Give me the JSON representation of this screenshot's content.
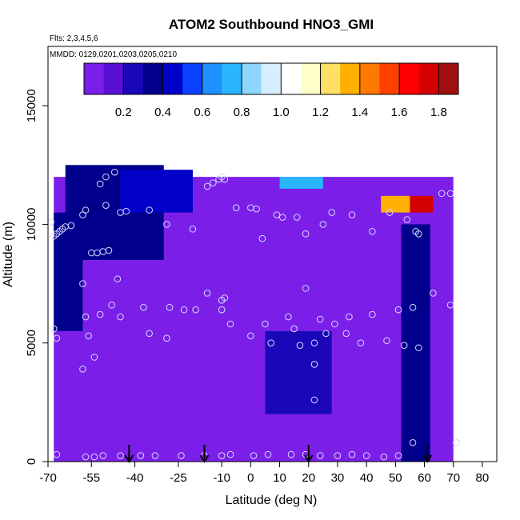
{
  "chart_data": {
    "type": "heatmap",
    "title": "ATOM2 Southbound HNO3_GMI",
    "notes": [
      "Flts: 2,3,4,5,6",
      "MMDD: 0129,0201,0203,0205,0210"
    ],
    "xlabel": "Latitude (deg N)",
    "ylabel": "Altitude (m)",
    "xlim": [
      -70,
      85
    ],
    "ylim": [
      0,
      17500
    ],
    "x_ticks": [
      -70,
      -55,
      -40,
      -25,
      -10,
      0,
      10,
      20,
      30,
      40,
      50,
      60,
      70,
      80
    ],
    "y_ticks": [
      0,
      5000,
      10000,
      15000
    ],
    "grid": false,
    "colorbar": {
      "placement": "top",
      "range": [
        0,
        1.9
      ],
      "ticks": [
        0.2,
        0.4,
        0.6,
        0.8,
        1.0,
        1.2,
        1.4,
        1.6,
        1.8
      ],
      "tick_labels": [
        "0.2",
        "0.4",
        "0.6",
        "0.8",
        "1.0",
        "1.2",
        "1.4",
        "1.6",
        "1.8"
      ],
      "colors": [
        "#7b1fe8",
        "#5a0fd6",
        "#1a08b8",
        "#00008c",
        "#0000c8",
        "#0a40ff",
        "#1e90ff",
        "#29b6ff",
        "#8fd6ff",
        "#d6efff",
        "#ffffff",
        "#ffffc8",
        "#ffe066",
        "#ffb000",
        "#ff7a00",
        "#ff4000",
        "#ff0000",
        "#d40000",
        "#a01010"
      ]
    },
    "field_regions": [
      {
        "lat_range": [
          -68,
          70
        ],
        "alt_range": [
          0,
          12000
        ],
        "value": 0.05,
        "note": "background"
      },
      {
        "lat_range": [
          -64,
          -30
        ],
        "alt_range": [
          8500,
          12500
        ],
        "value": 0.3
      },
      {
        "lat_range": [
          -45,
          -20
        ],
        "alt_range": [
          10500,
          12300
        ],
        "value": 0.45
      },
      {
        "lat_range": [
          5,
          28
        ],
        "alt_range": [
          2000,
          5500
        ],
        "value": 0.25
      },
      {
        "lat_range": [
          -68,
          -58
        ],
        "alt_range": [
          5500,
          10500
        ],
        "value": 0.3
      },
      {
        "lat_range": [
          52,
          62
        ],
        "alt_range": [
          0,
          10000
        ],
        "value": 0.35
      },
      {
        "lat_range": [
          10,
          25
        ],
        "alt_range": [
          11500,
          12000
        ],
        "value": 0.7
      },
      {
        "lat_range": [
          45,
          55
        ],
        "alt_range": [
          10500,
          11200
        ],
        "value": 1.3
      },
      {
        "lat_range": [
          55,
          63
        ],
        "alt_range": [
          10500,
          11200
        ],
        "value": 1.7
      }
    ],
    "flight_path_points": [
      {
        "lat": -69,
        "alt": 10100
      },
      {
        "lat": -68,
        "alt": 9500
      },
      {
        "lat": -67,
        "alt": 9600
      },
      {
        "lat": -66,
        "alt": 9700
      },
      {
        "lat": -65,
        "alt": 9800
      },
      {
        "lat": -64,
        "alt": 9900
      },
      {
        "lat": -62,
        "alt": 9950
      },
      {
        "lat": -58,
        "alt": 10400
      },
      {
        "lat": -57,
        "alt": 10600
      },
      {
        "lat": -55,
        "alt": 8800
      },
      {
        "lat": -53,
        "alt": 8800
      },
      {
        "lat": -51,
        "alt": 8850
      },
      {
        "lat": -49,
        "alt": 8900
      },
      {
        "lat": -52,
        "alt": 11700
      },
      {
        "lat": -50,
        "alt": 12000
      },
      {
        "lat": -47,
        "alt": 12200
      },
      {
        "lat": -45,
        "alt": 10500
      },
      {
        "lat": -43,
        "alt": 10550
      },
      {
        "lat": -50,
        "alt": 10800
      },
      {
        "lat": -35,
        "alt": 10600
      },
      {
        "lat": -29,
        "alt": 10000
      },
      {
        "lat": -20,
        "alt": 9800
      },
      {
        "lat": -15,
        "alt": 11600
      },
      {
        "lat": -13,
        "alt": 11750
      },
      {
        "lat": -11,
        "alt": 11900
      },
      {
        "lat": -10,
        "alt": 12000
      },
      {
        "lat": -9,
        "alt": 11900
      },
      {
        "lat": -5,
        "alt": 10700
      },
      {
        "lat": 0,
        "alt": 10700
      },
      {
        "lat": 2,
        "alt": 10650
      },
      {
        "lat": 4,
        "alt": 9400
      },
      {
        "lat": 9,
        "alt": 10400
      },
      {
        "lat": 11,
        "alt": 10300
      },
      {
        "lat": 16,
        "alt": 10300
      },
      {
        "lat": 19,
        "alt": 9600
      },
      {
        "lat": 25,
        "alt": 10000
      },
      {
        "lat": 28,
        "alt": 10500
      },
      {
        "lat": 35,
        "alt": 10400
      },
      {
        "lat": 42,
        "alt": 9700
      },
      {
        "lat": 48,
        "alt": 10500
      },
      {
        "lat": 54,
        "alt": 10200
      },
      {
        "lat": 57,
        "alt": 9700
      },
      {
        "lat": 58,
        "alt": 9600
      },
      {
        "lat": 66,
        "alt": 11300
      },
      {
        "lat": 69,
        "alt": 11300
      },
      {
        "lat": -58,
        "alt": 7500
      },
      {
        "lat": -46,
        "alt": 7700
      },
      {
        "lat": -52,
        "alt": 6200
      },
      {
        "lat": -57,
        "alt": 6100
      },
      {
        "lat": -48,
        "alt": 6600
      },
      {
        "lat": -45,
        "alt": 6100
      },
      {
        "lat": -37,
        "alt": 6500
      },
      {
        "lat": -28,
        "alt": 6500
      },
      {
        "lat": -23,
        "alt": 6400
      },
      {
        "lat": -19,
        "alt": 6400
      },
      {
        "lat": -15,
        "alt": 7100
      },
      {
        "lat": -10,
        "alt": 6800
      },
      {
        "lat": -9,
        "alt": 6900
      },
      {
        "lat": -10,
        "alt": 6400
      },
      {
        "lat": -7,
        "alt": 5800
      },
      {
        "lat": 0,
        "alt": 5300
      },
      {
        "lat": 5,
        "alt": 5800
      },
      {
        "lat": 7,
        "alt": 5000
      },
      {
        "lat": 13,
        "alt": 6100
      },
      {
        "lat": 15,
        "alt": 5600
      },
      {
        "lat": 19,
        "alt": 7300
      },
      {
        "lat": 22,
        "alt": 5000
      },
      {
        "lat": 24,
        "alt": 6000
      },
      {
        "lat": 26,
        "alt": 5400
      },
      {
        "lat": 29,
        "alt": 5800
      },
      {
        "lat": 33,
        "alt": 5400
      },
      {
        "lat": 34,
        "alt": 6100
      },
      {
        "lat": 38,
        "alt": 5000
      },
      {
        "lat": 42,
        "alt": 6200
      },
      {
        "lat": 47,
        "alt": 5100
      },
      {
        "lat": 51,
        "alt": 6400
      },
      {
        "lat": 53,
        "alt": 4900
      },
      {
        "lat": 56,
        "alt": 6500
      },
      {
        "lat": 58,
        "alt": 4800
      },
      {
        "lat": 63,
        "alt": 7100
      },
      {
        "lat": 69,
        "alt": 6600
      },
      {
        "lat": -68,
        "alt": 5600
      },
      {
        "lat": -67,
        "alt": 5200
      },
      {
        "lat": -56,
        "alt": 5300
      },
      {
        "lat": -35,
        "alt": 5400
      },
      {
        "lat": -29,
        "alt": 5200
      },
      {
        "lat": -54,
        "alt": 4400
      },
      {
        "lat": -58,
        "alt": 3900
      },
      {
        "lat": 17,
        "alt": 4900
      },
      {
        "lat": 22,
        "alt": 4100
      },
      {
        "lat": 22,
        "alt": 2600
      },
      {
        "lat": -67,
        "alt": 300
      },
      {
        "lat": -57,
        "alt": 200
      },
      {
        "lat": -54,
        "alt": 200
      },
      {
        "lat": -51,
        "alt": 250
      },
      {
        "lat": -45,
        "alt": 250
      },
      {
        "lat": -38,
        "alt": 250
      },
      {
        "lat": -33,
        "alt": 250
      },
      {
        "lat": -24,
        "alt": 250
      },
      {
        "lat": -16,
        "alt": 250
      },
      {
        "lat": -10,
        "alt": 250
      },
      {
        "lat": -7,
        "alt": 300
      },
      {
        "lat": 1,
        "alt": 250
      },
      {
        "lat": 6,
        "alt": 300
      },
      {
        "lat": 14,
        "alt": 300
      },
      {
        "lat": 19,
        "alt": 300
      },
      {
        "lat": 24,
        "alt": 250
      },
      {
        "lat": 30,
        "alt": 250
      },
      {
        "lat": 35,
        "alt": 300
      },
      {
        "lat": 40,
        "alt": 250
      },
      {
        "lat": 46,
        "alt": 200
      },
      {
        "lat": 51,
        "alt": 250
      },
      {
        "lat": 56,
        "alt": 800
      },
      {
        "lat": 71,
        "alt": 800
      }
    ],
    "flight_path_color": "#d8d8ff",
    "arrows_lat": [
      -42,
      -16,
      20,
      61
    ]
  }
}
